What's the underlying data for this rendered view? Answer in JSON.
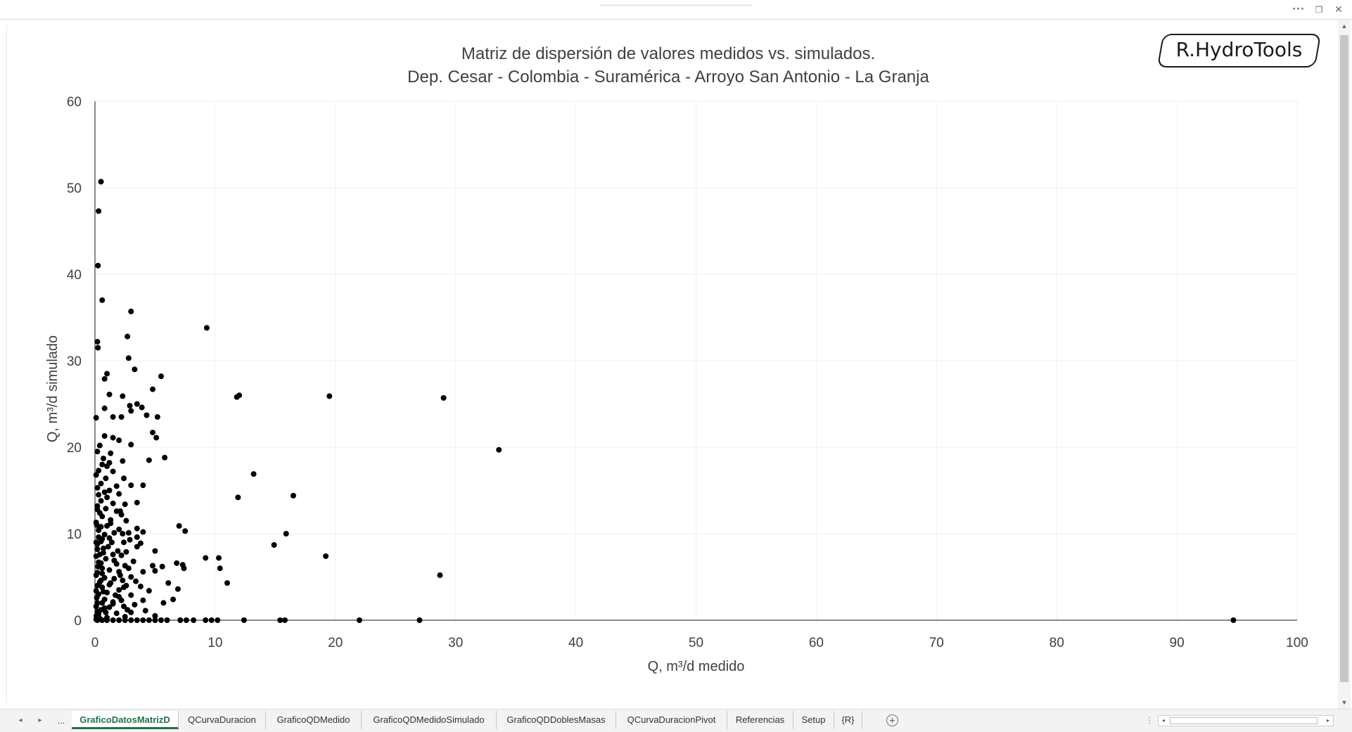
{
  "window": {
    "more_label": "···",
    "restore_label": "❐",
    "close_label": "✕"
  },
  "logo": {
    "text": "R.HydroTools"
  },
  "colors": {
    "tab_active": "#217346",
    "marker": "#000000",
    "axis": "#404040",
    "grid": "#f0f0f0"
  },
  "chart_data": {
    "type": "scatter",
    "title": [
      "Matriz de dispersión de valores medidos vs. simulados.",
      "Dep. Cesar - Colombia - Suramérica - Arroyo San Antonio - La Granja"
    ],
    "xlabel": "Q, m³/d medido",
    "ylabel": "Q, m³/d simulado",
    "xlim": [
      0,
      100
    ],
    "ylim": [
      0,
      60
    ],
    "xticks": [
      "0",
      "10",
      "20",
      "30",
      "40",
      "50",
      "60",
      "70",
      "80",
      "90",
      "100"
    ],
    "yticks": [
      "0",
      "10",
      "20",
      "30",
      "40",
      "50",
      "60"
    ],
    "grid": true,
    "legend": "none",
    "series": [
      {
        "points": [
          [
            0.5,
            50.7
          ],
          [
            0.3,
            47.3
          ],
          [
            0.25,
            41.0
          ],
          [
            0.6,
            37.0
          ],
          [
            3.0,
            35.7
          ],
          [
            9.3,
            33.8
          ],
          [
            2.7,
            32.8
          ],
          [
            0.2,
            32.2
          ],
          [
            0.25,
            31.5
          ],
          [
            2.8,
            30.3
          ],
          [
            3.3,
            29.0
          ],
          [
            1.0,
            28.5
          ],
          [
            0.8,
            27.9
          ],
          [
            5.5,
            28.2
          ],
          [
            4.8,
            26.7
          ],
          [
            1.2,
            26.1
          ],
          [
            2.3,
            25.9
          ],
          [
            12.0,
            26.0
          ],
          [
            11.8,
            25.8
          ],
          [
            19.5,
            25.9
          ],
          [
            29.0,
            25.7
          ],
          [
            3.5,
            25.0
          ],
          [
            2.9,
            24.8
          ],
          [
            0.8,
            24.5
          ],
          [
            3.9,
            24.6
          ],
          [
            2.2,
            23.5
          ],
          [
            4.3,
            23.7
          ],
          [
            5.2,
            23.5
          ],
          [
            1.5,
            23.5
          ],
          [
            0.1,
            23.4
          ],
          [
            3.0,
            24.2
          ],
          [
            4.8,
            21.7
          ],
          [
            5.1,
            21.1
          ],
          [
            0.8,
            21.3
          ],
          [
            1.5,
            21.1
          ],
          [
            2.0,
            20.8
          ],
          [
            3.0,
            20.3
          ],
          [
            0.4,
            20.2
          ],
          [
            33.6,
            19.7
          ],
          [
            0.2,
            19.5
          ],
          [
            1.3,
            19.3
          ],
          [
            0.7,
            18.7
          ],
          [
            1.2,
            18.2
          ],
          [
            5.8,
            18.8
          ],
          [
            4.5,
            18.5
          ],
          [
            2.3,
            18.4
          ],
          [
            0.6,
            18.0
          ],
          [
            1.0,
            17.8
          ],
          [
            0.3,
            17.3
          ],
          [
            1.5,
            17.2
          ],
          [
            13.2,
            16.9
          ],
          [
            2.4,
            16.4
          ],
          [
            0.9,
            16.4
          ],
          [
            0.1,
            16.8
          ],
          [
            0.5,
            15.8
          ],
          [
            1.8,
            15.5
          ],
          [
            3.0,
            15.6
          ],
          [
            4.0,
            15.6
          ],
          [
            0.2,
            15.3
          ],
          [
            1.2,
            15.0
          ],
          [
            0.8,
            14.8
          ],
          [
            2.0,
            14.6
          ],
          [
            0.3,
            14.5
          ],
          [
            16.5,
            14.4
          ],
          [
            11.9,
            14.2
          ],
          [
            1.0,
            14.2
          ],
          [
            0.5,
            13.8
          ],
          [
            3.5,
            13.6
          ],
          [
            1.5,
            13.5
          ],
          [
            2.5,
            13.4
          ],
          [
            0.2,
            13.2
          ],
          [
            0.9,
            12.9
          ],
          [
            1.8,
            12.6
          ],
          [
            0.4,
            12.4
          ],
          [
            2.2,
            12.2
          ],
          [
            0.6,
            12.0
          ],
          [
            1.3,
            11.6
          ],
          [
            0.1,
            11.3
          ],
          [
            1.0,
            10.9
          ],
          [
            7.0,
            10.9
          ],
          [
            3.5,
            10.6
          ],
          [
            2.0,
            10.5
          ],
          [
            7.5,
            10.3
          ],
          [
            0.3,
            10.4
          ],
          [
            1.6,
            10.1
          ],
          [
            2.8,
            10.1
          ],
          [
            4.0,
            10.2
          ],
          [
            15.9,
            10.0
          ],
          [
            0.8,
            9.9
          ],
          [
            3.5,
            9.6
          ],
          [
            1.2,
            9.5
          ],
          [
            0.5,
            9.1
          ],
          [
            2.4,
            9.0
          ],
          [
            3.8,
            8.9
          ],
          [
            0.2,
            8.8
          ],
          [
            14.9,
            8.7
          ],
          [
            1.1,
            8.5
          ],
          [
            3.5,
            8.5
          ],
          [
            0.7,
            8.3
          ],
          [
            5.0,
            8.0
          ],
          [
            1.9,
            8.0
          ],
          [
            2.6,
            7.9
          ],
          [
            0.4,
            7.6
          ],
          [
            1.5,
            7.6
          ],
          [
            9.2,
            7.2
          ],
          [
            10.3,
            7.2
          ],
          [
            19.2,
            7.4
          ],
          [
            0.9,
            7.1
          ],
          [
            3.2,
            6.8
          ],
          [
            0.3,
            6.7
          ],
          [
            1.8,
            6.5
          ],
          [
            6.8,
            6.6
          ],
          [
            7.3,
            6.4
          ],
          [
            2.5,
            6.3
          ],
          [
            4.8,
            6.3
          ],
          [
            5.6,
            6.2
          ],
          [
            10.4,
            6.0
          ],
          [
            7.4,
            6.0
          ],
          [
            0.6,
            6.0
          ],
          [
            1.2,
            5.8
          ],
          [
            2.0,
            5.6
          ],
          [
            0.2,
            5.5
          ],
          [
            4.0,
            5.6
          ],
          [
            5.0,
            5.7
          ],
          [
            28.7,
            5.2
          ],
          [
            3.0,
            5.0
          ],
          [
            0.8,
            4.9
          ],
          [
            1.6,
            4.8
          ],
          [
            2.3,
            4.6
          ],
          [
            3.4,
            4.5
          ],
          [
            0.4,
            4.4
          ],
          [
            6.1,
            4.3
          ],
          [
            11.0,
            4.3
          ],
          [
            1.2,
            4.1
          ],
          [
            2.6,
            4.0
          ],
          [
            3.8,
            3.9
          ],
          [
            0.6,
            3.8
          ],
          [
            6.9,
            3.6
          ],
          [
            2.0,
            3.5
          ],
          [
            4.5,
            3.4
          ],
          [
            1.0,
            3.2
          ],
          [
            0.3,
            3.0
          ],
          [
            3.0,
            2.9
          ],
          [
            2.0,
            2.7
          ],
          [
            6.5,
            2.4
          ],
          [
            4.0,
            2.3
          ],
          [
            0.8,
            2.4
          ],
          [
            1.5,
            2.1
          ],
          [
            5.7,
            2.0
          ],
          [
            0.2,
            2.0
          ],
          [
            3.3,
            1.8
          ],
          [
            2.4,
            1.6
          ],
          [
            1.2,
            1.5
          ],
          [
            0.5,
            1.2
          ],
          [
            4.2,
            1.1
          ],
          [
            3.0,
            0.9
          ],
          [
            1.8,
            0.8
          ],
          [
            0.3,
            0.7
          ],
          [
            5.0,
            0.5
          ],
          [
            2.5,
            0.4
          ],
          [
            1.0,
            0.3
          ],
          [
            0.4,
            0.2
          ],
          [
            0.1,
            0.1
          ],
          [
            0.2,
            0
          ],
          [
            0.6,
            0
          ],
          [
            1.0,
            0
          ],
          [
            1.5,
            0
          ],
          [
            2.0,
            0
          ],
          [
            2.5,
            0
          ],
          [
            3.0,
            0
          ],
          [
            3.5,
            0
          ],
          [
            4.0,
            0
          ],
          [
            4.5,
            0
          ],
          [
            5.0,
            0
          ],
          [
            5.5,
            0
          ],
          [
            6.0,
            0
          ],
          [
            7.1,
            0
          ],
          [
            7.6,
            0
          ],
          [
            8.2,
            0
          ],
          [
            9.2,
            0
          ],
          [
            9.7,
            0
          ],
          [
            10.2,
            0
          ],
          [
            12.4,
            0
          ],
          [
            15.4,
            0
          ],
          [
            15.8,
            0
          ],
          [
            22.0,
            0
          ],
          [
            27.0,
            0
          ],
          [
            94.7,
            0
          ],
          [
            0.2,
            12.8
          ],
          [
            0.15,
            11.0
          ],
          [
            0.3,
            9.6
          ],
          [
            0.1,
            9.0
          ],
          [
            0.2,
            8.2
          ],
          [
            0.1,
            7.4
          ],
          [
            0.25,
            6.2
          ],
          [
            0.1,
            5.2
          ],
          [
            0.2,
            4.0
          ],
          [
            0.1,
            3.4
          ],
          [
            0.15,
            2.6
          ],
          [
            0.1,
            1.6
          ],
          [
            0.2,
            1.0
          ],
          [
            0.12,
            0.5
          ],
          [
            0.5,
            10.8
          ],
          [
            0.6,
            9.4
          ],
          [
            0.7,
            7.8
          ],
          [
            0.5,
            6.6
          ],
          [
            0.6,
            5.4
          ],
          [
            0.5,
            4.6
          ],
          [
            0.7,
            3.3
          ],
          [
            0.6,
            2.0
          ],
          [
            0.8,
            1.4
          ],
          [
            0.9,
            0.9
          ],
          [
            1.3,
            11.2
          ],
          [
            1.4,
            9.0
          ],
          [
            1.6,
            6.9
          ],
          [
            1.3,
            4.3
          ],
          [
            1.7,
            2.9
          ],
          [
            1.5,
            1.9
          ],
          [
            2.1,
            12.6
          ],
          [
            2.3,
            10.0
          ],
          [
            2.2,
            7.5
          ],
          [
            2.1,
            5.2
          ],
          [
            2.4,
            3.8
          ],
          [
            2.2,
            2.3
          ],
          [
            2.7,
            1.2
          ],
          [
            2.6,
            11.5
          ],
          [
            2.9,
            9.3
          ],
          [
            2.8,
            6.0
          ]
        ]
      }
    ]
  },
  "sheet_tabs": {
    "nav_prev": "◂",
    "nav_next": "▸",
    "nav_more": "...",
    "active": "GraficoDatosMatrizD",
    "t1": "QCurvaDuracion",
    "t2": "GraficoQDMedido",
    "t3": "GraficoQDMedidoSimulado",
    "t4": "GraficoQDDoblesMasas",
    "t5": "QCurvaDuracionPivot",
    "t6": "Referencias",
    "t7": "Setup",
    "t8": "{R}",
    "add_label": "+",
    "split_label": "⋮"
  },
  "scrollbar": {
    "up": "▲",
    "down": "▼",
    "left": "◂",
    "right": "▸"
  }
}
